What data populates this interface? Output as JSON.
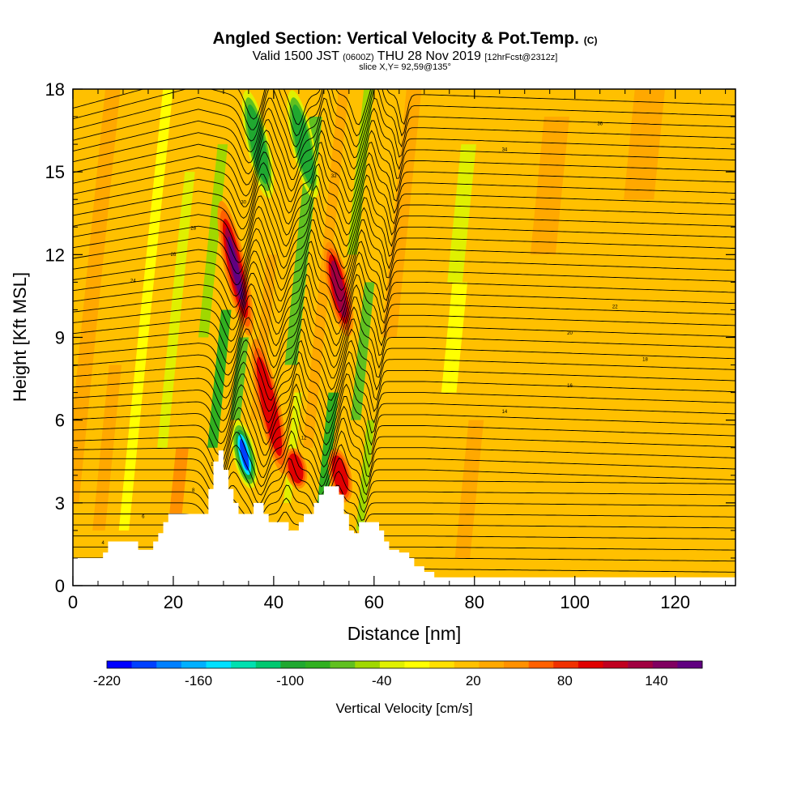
{
  "header": {
    "title_main": "Angled Section: Vertical Velocity & Pot.Temp.",
    "title_unit": "(C)",
    "subtitle_prefix": "Valid 1500 JST",
    "subtitle_zulu": "(0600Z)",
    "subtitle_date": "THU 28 Nov 2019",
    "subtitle_fcst": "[12hrFcst@2312z]",
    "slice": "slice X,Y= 92,59@135°"
  },
  "chart_data": {
    "type": "heatmap",
    "xlabel": "Distance [nm]",
    "ylabel": "Height [Kft MSL]",
    "xlim": [
      0,
      132
    ],
    "ylim": [
      0,
      18
    ],
    "x_ticks": [
      0,
      20,
      40,
      60,
      80,
      100,
      120
    ],
    "y_ticks": [
      0,
      3,
      6,
      9,
      12,
      15,
      18
    ],
    "colorbar": {
      "label": "Vertical Velocity [cm/s]",
      "range": [
        -220,
        170
      ],
      "ticks": [
        -220,
        -160,
        -100,
        -40,
        20,
        80,
        140
      ],
      "colors": [
        "#0000ff",
        "#0040ff",
        "#0080ff",
        "#00b0ff",
        "#00e0ff",
        "#00e0b0",
        "#00c870",
        "#20a830",
        "#30b020",
        "#60c020",
        "#a0d800",
        "#e0f000",
        "#ffff00",
        "#ffe000",
        "#ffc000",
        "#ffa800",
        "#ff9000",
        "#ff6000",
        "#f03000",
        "#e00000",
        "#c00020",
        "#a00040",
        "#800060",
        "#600080"
      ]
    },
    "updraft_cores": [
      {
        "x": 31,
        "zmin": 9,
        "zmax": 14,
        "w": 150
      },
      {
        "x": 40.5,
        "zmin": 4,
        "zmax": 9,
        "w": 110
      },
      {
        "x": 47,
        "zmin": 3.5,
        "zmax": 5,
        "w": 90
      },
      {
        "x": 52,
        "zmin": 9,
        "zmax": 12.5,
        "w": 120
      },
      {
        "x": 56,
        "zmin": 3,
        "zmax": 5,
        "w": 110
      }
    ],
    "downdraft_cores": [
      {
        "x": 36.5,
        "zmin": 3.5,
        "zmax": 6,
        "w": -200
      },
      {
        "x": 33,
        "zmin": 14,
        "zmax": 18,
        "w": -100
      },
      {
        "x": 42,
        "zmin": 14,
        "zmax": 18,
        "w": -90
      }
    ],
    "terrain": [
      [
        0,
        1.0
      ],
      [
        5,
        1.0
      ],
      [
        6,
        1.2
      ],
      [
        7,
        1.6
      ],
      [
        12,
        1.6
      ],
      [
        13,
        1.3
      ],
      [
        15,
        1.3
      ],
      [
        16,
        1.6
      ],
      [
        17,
        1.9
      ],
      [
        18,
        2.3
      ],
      [
        19,
        2.6
      ],
      [
        20,
        2.6
      ],
      [
        21,
        2.6
      ],
      [
        23,
        2.6
      ],
      [
        24,
        2.6
      ],
      [
        25,
        2.6
      ],
      [
        26,
        2.6
      ],
      [
        27,
        3.5
      ],
      [
        28,
        4.5
      ],
      [
        29,
        4.9
      ],
      [
        30,
        4.2
      ],
      [
        31,
        3.5
      ],
      [
        32,
        3.0
      ],
      [
        33,
        2.6
      ],
      [
        34,
        2.6
      ],
      [
        35,
        2.6
      ],
      [
        36,
        3.0
      ],
      [
        37,
        3.0
      ],
      [
        38,
        2.6
      ],
      [
        39,
        2.3
      ],
      [
        40,
        2.3
      ],
      [
        41,
        2.3
      ],
      [
        42,
        2.3
      ],
      [
        43,
        2.0
      ],
      [
        44,
        2.0
      ],
      [
        45,
        2.3
      ],
      [
        46,
        2.6
      ],
      [
        47,
        2.6
      ],
      [
        48,
        3.0
      ],
      [
        49,
        3.3
      ],
      [
        50,
        3.6
      ],
      [
        51,
        3.6
      ],
      [
        52,
        3.6
      ],
      [
        53,
        3.3
      ],
      [
        54,
        2.6
      ],
      [
        55,
        2.0
      ],
      [
        56,
        1.9
      ],
      [
        57,
        2.3
      ],
      [
        58,
        2.3
      ],
      [
        59,
        2.3
      ],
      [
        60,
        2.3
      ],
      [
        61,
        2.0
      ],
      [
        62,
        1.6
      ],
      [
        63,
        1.3
      ],
      [
        65,
        1.2
      ],
      [
        67,
        1.0
      ],
      [
        68,
        0.7
      ],
      [
        70,
        0.5
      ],
      [
        72,
        0.3
      ],
      [
        75,
        0.3
      ],
      [
        132,
        0.3
      ]
    ],
    "theta_labels": [
      "4",
      "6",
      "8",
      "10",
      "12",
      "14",
      "16",
      "18",
      "20",
      "22",
      "24",
      "26",
      "28",
      "30",
      "32",
      "34",
      "36"
    ]
  }
}
